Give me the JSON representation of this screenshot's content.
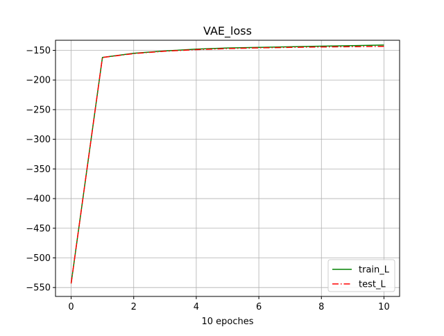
{
  "chart_data": {
    "type": "line",
    "title": "VAE_loss",
    "xlabel": "10 epoches",
    "ylabel": "",
    "x": [
      0,
      1,
      2,
      3,
      4,
      5,
      6,
      7,
      8,
      9,
      10
    ],
    "xlim": [
      -0.5,
      10.5
    ],
    "ylim": [
      -565,
      -133
    ],
    "xticks": [
      0,
      2,
      4,
      6,
      8,
      10
    ],
    "yticks": [
      -550,
      -500,
      -450,
      -400,
      -350,
      -300,
      -250,
      -200,
      -150
    ],
    "grid": true,
    "legend_position": "lower-right",
    "series": [
      {
        "name": "train_L",
        "color": "#008000",
        "style": "solid",
        "values": [
          -543,
          -162,
          -155,
          -151,
          -148,
          -146,
          -145,
          -144,
          -143,
          -142,
          -141
        ]
      },
      {
        "name": "test_L",
        "color": "#ff0000",
        "style": "dashdot",
        "values": [
          -543,
          -162,
          -155.5,
          -151.5,
          -148.8,
          -147,
          -145.8,
          -145,
          -144.3,
          -143.8,
          -143.2
        ]
      }
    ]
  }
}
